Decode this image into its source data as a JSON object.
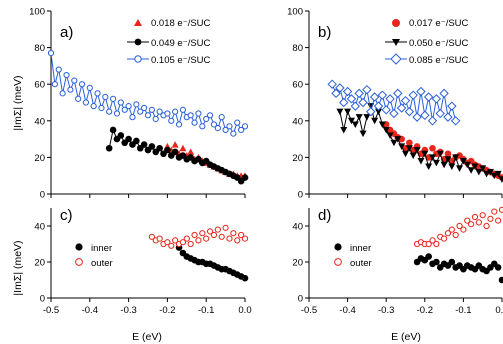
{
  "panel_labels": [
    "a)",
    "b)",
    "c)",
    "d)"
  ],
  "ylabel_top": "|ImΣ| (meV)",
  "ylabel_bottom": "|ImΣ| (meV)",
  "xlabel": "E (eV)",
  "legend_c_inner": "inner",
  "legend_c_outer": "outer",
  "legend_d_inner": "inner",
  "legend_d_outer": "outer",
  "chart_data": [
    {
      "panel": "a)",
      "type": "scatter",
      "xlim": [
        -0.5,
        0.0
      ],
      "ylim": [
        0,
        100
      ],
      "yticks": [
        0,
        20,
        40,
        60,
        80,
        100
      ],
      "series": [
        {
          "name": "0.018 e⁻/SUC",
          "color": "#e8261c",
          "marker": "triangle",
          "line": false,
          "x": [
            -0.2,
            -0.19,
            -0.18,
            -0.17,
            -0.16,
            -0.15,
            -0.14,
            -0.13,
            -0.12,
            -0.11,
            -0.1,
            -0.09,
            -0.08,
            -0.07,
            -0.06,
            -0.05,
            -0.04,
            -0.03,
            -0.02,
            -0.01,
            0.0
          ],
          "y": [
            26,
            24,
            27,
            22,
            25,
            21,
            23,
            19,
            20,
            18,
            17,
            16,
            15,
            14,
            13,
            12,
            11,
            11,
            10,
            10,
            10
          ]
        },
        {
          "name": "0.049 e⁻/SUC",
          "color": "#000000",
          "marker": "circle",
          "line": true,
          "x": [
            -0.35,
            -0.34,
            -0.33,
            -0.32,
            -0.31,
            -0.3,
            -0.29,
            -0.28,
            -0.27,
            -0.26,
            -0.25,
            -0.24,
            -0.23,
            -0.22,
            -0.21,
            -0.2,
            -0.19,
            -0.18,
            -0.17,
            -0.16,
            -0.15,
            -0.14,
            -0.13,
            -0.12,
            -0.11,
            -0.1,
            -0.09,
            -0.08,
            -0.07,
            -0.06,
            -0.05,
            -0.04,
            -0.03,
            -0.02,
            -0.01,
            0.0
          ],
          "y": [
            25,
            35,
            30,
            32,
            28,
            30,
            27,
            29,
            25,
            27,
            24,
            26,
            23,
            25,
            22,
            24,
            21,
            23,
            20,
            21,
            19,
            20,
            18,
            19,
            17,
            18,
            16,
            15,
            14,
            13,
            12,
            11,
            10,
            9,
            7,
            9
          ]
        },
        {
          "name": "0.105 e⁻/SUC",
          "color": "#2a5fd8",
          "marker": "open-circle",
          "line": true,
          "x": [
            -0.5,
            -0.49,
            -0.48,
            -0.47,
            -0.46,
            -0.45,
            -0.44,
            -0.43,
            -0.42,
            -0.41,
            -0.4,
            -0.39,
            -0.38,
            -0.37,
            -0.36,
            -0.35,
            -0.34,
            -0.33,
            -0.32,
            -0.31,
            -0.3,
            -0.29,
            -0.28,
            -0.27,
            -0.26,
            -0.25,
            -0.24,
            -0.23,
            -0.22,
            -0.21,
            -0.2,
            -0.19,
            -0.18,
            -0.17,
            -0.16,
            -0.15,
            -0.14,
            -0.13,
            -0.12,
            -0.11,
            -0.1,
            -0.09,
            -0.08,
            -0.07,
            -0.06,
            -0.05,
            -0.04,
            -0.03,
            -0.02,
            -0.01,
            0.0
          ],
          "y": [
            77,
            60,
            68,
            55,
            65,
            57,
            62,
            52,
            60,
            50,
            58,
            48,
            55,
            47,
            53,
            45,
            52,
            44,
            50,
            46,
            48,
            42,
            49,
            45,
            47,
            43,
            46,
            41,
            45,
            43,
            44,
            40,
            45,
            38,
            46,
            42,
            43,
            39,
            44,
            37,
            41,
            43,
            38,
            36,
            42,
            35,
            37,
            33,
            39,
            35,
            37
          ]
        }
      ]
    },
    {
      "panel": "b)",
      "type": "scatter",
      "xlim": [
        -0.5,
        0.0
      ],
      "ylim": [
        0,
        100
      ],
      "yticks": [
        0,
        20,
        40,
        60,
        80,
        100
      ],
      "series": [
        {
          "name": "0.017 e⁻/SUC",
          "color": "#e8261c",
          "marker": "circle",
          "line": false,
          "x": [
            -0.3,
            -0.29,
            -0.28,
            -0.27,
            -0.26,
            -0.25,
            -0.24,
            -0.23,
            -0.22,
            -0.21,
            -0.2,
            -0.19,
            -0.18,
            -0.17,
            -0.16,
            -0.15,
            -0.14,
            -0.13,
            -0.12,
            -0.11,
            -0.1,
            -0.09,
            -0.08,
            -0.07,
            -0.06,
            -0.05,
            -0.04,
            -0.03,
            -0.02,
            -0.01,
            0.0
          ],
          "y": [
            38,
            35,
            33,
            31,
            30,
            25,
            28,
            24,
            26,
            22,
            24,
            20,
            25,
            22,
            23,
            19,
            22,
            18,
            20,
            21,
            19,
            17,
            18,
            16,
            15,
            14,
            13,
            12,
            11,
            10,
            9
          ]
        },
        {
          "name": "0.050 e⁻/SUC",
          "color": "#000000",
          "marker": "triangle-down",
          "line": true,
          "x": [
            -0.42,
            -0.41,
            -0.4,
            -0.39,
            -0.38,
            -0.37,
            -0.36,
            -0.35,
            -0.34,
            -0.33,
            -0.32,
            -0.31,
            -0.3,
            -0.29,
            -0.28,
            -0.27,
            -0.26,
            -0.25,
            -0.24,
            -0.23,
            -0.22,
            -0.21,
            -0.2,
            -0.19,
            -0.18,
            -0.17,
            -0.16,
            -0.15,
            -0.14,
            -0.13,
            -0.12,
            -0.11,
            -0.1,
            -0.09,
            -0.08,
            -0.07,
            -0.06,
            -0.05,
            -0.04,
            -0.03,
            -0.02,
            -0.01,
            0.0
          ],
          "y": [
            45,
            35,
            45,
            40,
            38,
            42,
            33,
            42,
            48,
            40,
            45,
            38,
            35,
            32,
            28,
            30,
            26,
            22,
            25,
            21,
            24,
            18,
            22,
            15,
            20,
            17,
            22,
            16,
            19,
            15,
            20,
            14,
            18,
            16,
            13,
            15,
            12,
            14,
            11,
            12,
            10,
            11,
            8
          ]
        },
        {
          "name": "0.085 e⁻/SUC",
          "color": "#2a5fd8",
          "marker": "open-diamond",
          "line": true,
          "x": [
            -0.44,
            -0.43,
            -0.42,
            -0.41,
            -0.4,
            -0.39,
            -0.38,
            -0.37,
            -0.36,
            -0.35,
            -0.34,
            -0.33,
            -0.32,
            -0.31,
            -0.3,
            -0.29,
            -0.28,
            -0.27,
            -0.26,
            -0.25,
            -0.24,
            -0.23,
            -0.22,
            -0.21,
            -0.2,
            -0.19,
            -0.18,
            -0.17,
            -0.16,
            -0.15,
            -0.14,
            -0.13,
            -0.12
          ],
          "y": [
            60,
            55,
            58,
            50,
            56,
            52,
            48,
            55,
            50,
            57,
            45,
            53,
            48,
            54,
            46,
            52,
            44,
            55,
            47,
            51,
            45,
            54,
            42,
            56,
            43,
            53,
            40,
            52,
            44,
            55,
            42,
            48,
            40
          ]
        }
      ]
    },
    {
      "panel": "c)",
      "type": "scatter",
      "xlim": [
        -0.5,
        0.0
      ],
      "ylim": [
        0,
        50
      ],
      "yticks": [
        0,
        20,
        40
      ],
      "xticks": [
        "-0.5",
        "-0.4",
        "-0.3",
        "-0.2",
        "-0.1",
        "0.0"
      ],
      "series": [
        {
          "name": "inner",
          "color": "#000000",
          "marker": "circle",
          "x": [
            -0.17,
            -0.16,
            -0.15,
            -0.14,
            -0.13,
            -0.12,
            -0.11,
            -0.1,
            -0.09,
            -0.08,
            -0.07,
            -0.06,
            -0.05,
            -0.04,
            -0.03,
            -0.02,
            -0.01,
            0.0
          ],
          "y": [
            28,
            25,
            23,
            22,
            21,
            20,
            20,
            19,
            19,
            18,
            17,
            16,
            16,
            15,
            14,
            13,
            12,
            11
          ]
        },
        {
          "name": "outer",
          "color": "#e8261c",
          "marker": "open-circle",
          "x": [
            -0.24,
            -0.23,
            -0.22,
            -0.21,
            -0.2,
            -0.19,
            -0.18,
            -0.17,
            -0.16,
            -0.15,
            -0.14,
            -0.13,
            -0.12,
            -0.11,
            -0.1,
            -0.09,
            -0.08,
            -0.07,
            -0.06,
            -0.05,
            -0.04,
            -0.03,
            -0.02,
            -0.01,
            0.0
          ],
          "y": [
            34,
            32,
            33,
            30,
            31,
            29,
            32,
            30,
            31,
            33,
            30,
            35,
            32,
            36,
            33,
            37,
            35,
            38,
            34,
            39,
            33,
            36,
            32,
            35,
            33
          ]
        }
      ]
    },
    {
      "panel": "d)",
      "type": "scatter",
      "xlim": [
        -0.5,
        0.0
      ],
      "ylim": [
        0,
        50
      ],
      "yticks": [
        0,
        20,
        40
      ],
      "xticks": [
        "-0.5",
        "-0.4",
        "-0.3",
        "-0.2",
        "-0.1",
        "0.0"
      ],
      "series": [
        {
          "name": "inner",
          "color": "#000000",
          "marker": "circle",
          "x": [
            -0.22,
            -0.21,
            -0.2,
            -0.19,
            -0.18,
            -0.17,
            -0.16,
            -0.15,
            -0.14,
            -0.13,
            -0.12,
            -0.11,
            -0.1,
            -0.09,
            -0.08,
            -0.07,
            -0.06,
            -0.05,
            -0.04,
            -0.03,
            -0.02,
            -0.01,
            0.0
          ],
          "y": [
            20,
            22,
            21,
            23,
            19,
            20,
            17,
            19,
            18,
            20,
            17,
            18,
            16,
            18,
            17,
            16,
            18,
            16,
            15,
            17,
            19,
            17,
            10
          ]
        },
        {
          "name": "outer",
          "color": "#e8261c",
          "marker": "open-circle",
          "x": [
            -0.22,
            -0.21,
            -0.2,
            -0.19,
            -0.18,
            -0.17,
            -0.16,
            -0.15,
            -0.14,
            -0.13,
            -0.12,
            -0.11,
            -0.1,
            -0.09,
            -0.08,
            -0.07,
            -0.06,
            -0.05,
            -0.04,
            -0.03,
            -0.02,
            -0.01,
            0.0
          ],
          "y": [
            30,
            31,
            30,
            30,
            32,
            30,
            34,
            33,
            36,
            38,
            35,
            40,
            38,
            43,
            41,
            45,
            42,
            46,
            40,
            44,
            48,
            43,
            49
          ]
        }
      ]
    }
  ]
}
